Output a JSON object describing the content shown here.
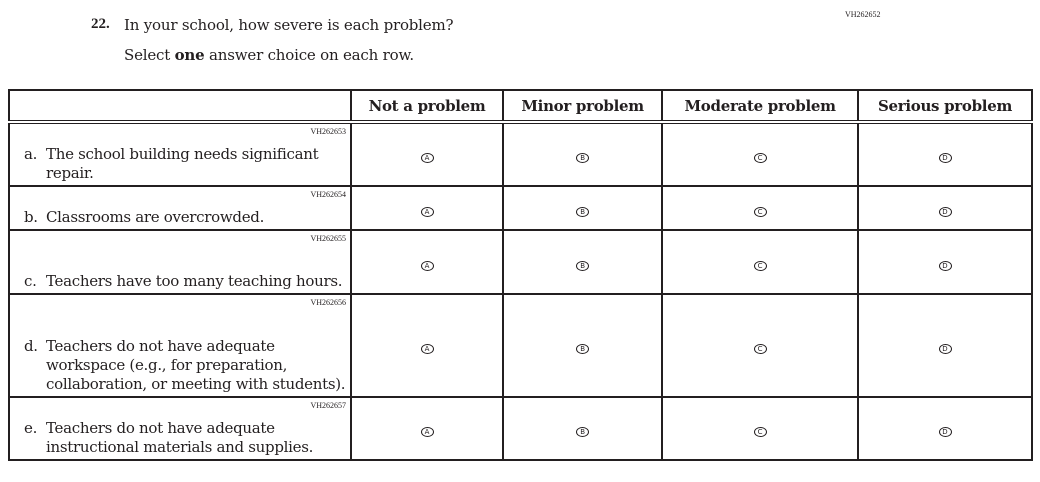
{
  "question": {
    "number": "22.",
    "text": "In your school, how severe is each problem?",
    "instruction_pre": "Select ",
    "instruction_bold": "one",
    "instruction_post": " answer choice on each row.",
    "id": "VH262652"
  },
  "columns": [
    "Not a problem",
    "Minor problem",
    "Moderate problem",
    "Serious problem"
  ],
  "options": [
    "A",
    "B",
    "C",
    "D"
  ],
  "rows": [
    {
      "code": "VH262653",
      "letter": "a.",
      "text": "The school building needs significant repair."
    },
    {
      "code": "VH262654",
      "letter": "b.",
      "text": "Classrooms are overcrowded."
    },
    {
      "code": "VH262655",
      "letter": "c.",
      "text": "Teachers have too many teaching hours."
    },
    {
      "code": "VH262656",
      "letter": "d.",
      "text": "Teachers do not have adequate workspace (e.g., for preparation, collaboration, or meeting with students)."
    },
    {
      "code": "VH262657",
      "letter": "e.",
      "text": "Teachers do not have adequate instructional materials and supplies."
    }
  ]
}
